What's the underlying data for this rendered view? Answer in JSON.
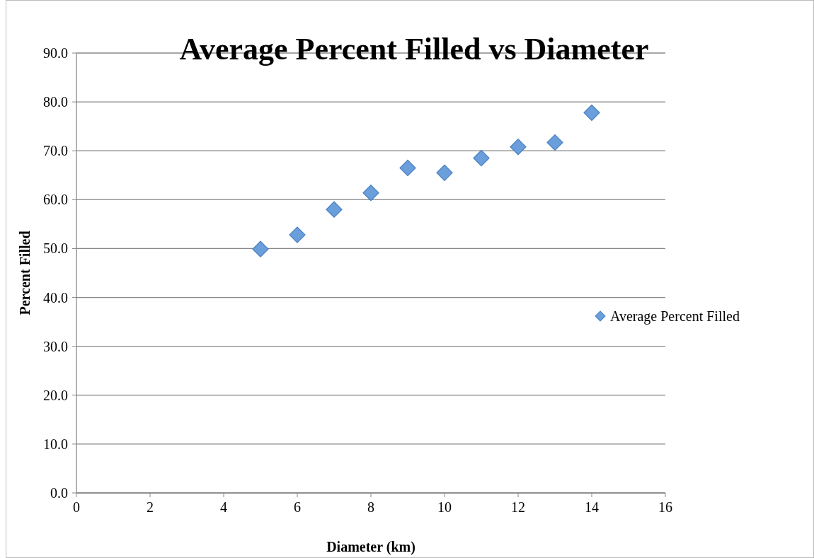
{
  "chart_data": {
    "type": "scatter",
    "title": "Average Percent Filled vs Diameter",
    "xlabel": "Diameter (km)",
    "ylabel": "Percent Filled",
    "x": [
      5,
      6,
      7,
      8,
      9,
      10,
      11,
      12,
      13,
      14
    ],
    "series": [
      {
        "name": "Average Percent Filled",
        "color": "#6a9fdc",
        "values": [
          49.9,
          52.8,
          58.0,
          61.4,
          66.5,
          65.5,
          68.5,
          70.8,
          71.7,
          77.8
        ]
      }
    ],
    "xlim": [
      0,
      16
    ],
    "xticks": [
      0,
      2,
      4,
      6,
      8,
      10,
      12,
      14,
      16
    ],
    "ylim": [
      0,
      90
    ],
    "yticks": [
      {
        "value": 0,
        "label": "0.0"
      },
      {
        "value": 10,
        "label": "10.0"
      },
      {
        "value": 20,
        "label": "20.0"
      },
      {
        "value": 30,
        "label": "30.0"
      },
      {
        "value": 40,
        "label": "40.0"
      },
      {
        "value": 50,
        "label": "50.0"
      },
      {
        "value": 60,
        "label": "60.0"
      },
      {
        "value": 70,
        "label": "70.0"
      },
      {
        "value": 80,
        "label": "80.0"
      },
      {
        "value": 90,
        "label": "90.0"
      }
    ],
    "grid": "y",
    "legend": "right",
    "marker": "diamond"
  }
}
